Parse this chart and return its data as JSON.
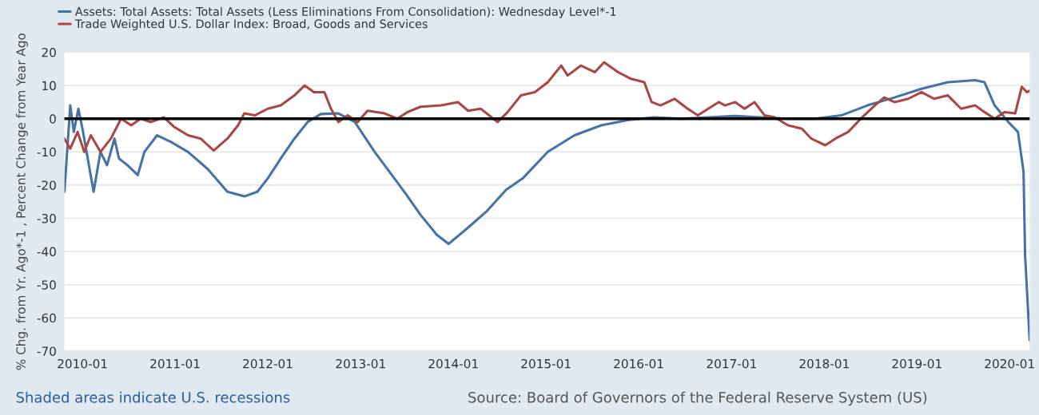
{
  "chart_data": {
    "type": "line",
    "ylabel": "% Chg. from Yr. Ago*-1 , Percent Change from Year Ago",
    "annotations": [
      "Shaded areas indicate U.S. recessions",
      "Source: Board of Governors of the Federal Reserve System (US)"
    ],
    "xlim": [
      "2009-10-22",
      "2020-03-20"
    ],
    "ylim": [
      -70,
      20
    ],
    "xticks": [
      "2010-01",
      "2011-01",
      "2012-01",
      "2013-01",
      "2014-01",
      "2015-01",
      "2016-01",
      "2017-01",
      "2018-01",
      "2019-01",
      "2020-01"
    ],
    "yticks": [
      -70,
      -60,
      -50,
      -40,
      -30,
      -20,
      -10,
      0,
      10,
      20
    ],
    "grid": "y",
    "legend": "top left",
    "marker": "none",
    "line_style": "solid",
    "ref_lines": [
      {
        "axis": "y",
        "value": 0,
        "color": "#000000"
      }
    ],
    "series": [
      {
        "name": "Assets: Total Assets: Total Assets (Less Eliminations From Consolidation): Wednesday Level*-1",
        "color": "#4572a7",
        "x": [
          "2009-10-22",
          "2009-11-14",
          "2009-11-28",
          "2009-12-16",
          "2010-01-01",
          "2010-02-14",
          "2010-03-13",
          "2010-04-08",
          "2010-05-07",
          "2010-05-25",
          "2010-06-27",
          "2010-08-07",
          "2010-09-02",
          "2010-10-22",
          "2010-12-16",
          "2011-02-21",
          "2011-05-07",
          "2011-07-26",
          "2011-10-01",
          "2011-11-21",
          "2012-01-01",
          "2012-02-21",
          "2012-04-15",
          "2012-06-06",
          "2012-07-28",
          "2012-10-05",
          "2012-12-09",
          "2013-02-25",
          "2013-05-14",
          "2013-07-01",
          "2013-08-25",
          "2013-10-28",
          "2013-12-13",
          "2014-02-25",
          "2014-05-11",
          "2014-07-28",
          "2014-10-01",
          "2015-01-08",
          "2015-04-23",
          "2015-08-07",
          "2015-11-18",
          "2016-03-02",
          "2016-06-16",
          "2016-10-01",
          "2017-01-15",
          "2017-04-26",
          "2017-08-11",
          "2017-11-25",
          "2018-03-09",
          "2018-06-20",
          "2018-10-05",
          "2019-01-19",
          "2019-05-03",
          "2019-08-18",
          "2019-09-24",
          "2019-11-03",
          "2019-12-27",
          "2020-02-03",
          "2020-02-25",
          "2020-03-02",
          "2020-03-20"
        ],
        "values": [
          -22,
          4,
          -4,
          3,
          -3,
          -22,
          -10,
          -14,
          -6,
          -12,
          -14,
          -17,
          -10,
          -5,
          -7,
          -10,
          -15,
          -22,
          -23.4,
          -22,
          -18,
          -12,
          -6,
          -1,
          1.4,
          1.6,
          -1,
          -10,
          -18,
          -23,
          -29,
          -35,
          -37.7,
          -33,
          -28,
          -21.4,
          -18,
          -10,
          -5,
          -2,
          -0.4,
          0.4,
          0,
          0.4,
          0.8,
          0.4,
          0,
          0,
          1,
          4,
          6.4,
          9,
          11,
          11.6,
          11,
          4,
          -1,
          -4,
          -16,
          -41,
          -66.7
        ]
      },
      {
        "name": "Trade Weighted U.S. Dollar Index: Broad, Goods and Services",
        "color": "#aa4643",
        "x": [
          "2009-10-22",
          "2009-11-14",
          "2009-12-13",
          "2010-01-08",
          "2010-02-03",
          "2010-03-13",
          "2010-04-23",
          "2010-06-02",
          "2010-07-12",
          "2010-08-18",
          "2010-09-27",
          "2010-11-18",
          "2010-12-27",
          "2011-02-21",
          "2011-04-12",
          "2011-06-02",
          "2011-07-26",
          "2011-09-06",
          "2011-10-01",
          "2011-11-11",
          "2012-01-01",
          "2012-02-21",
          "2012-04-15",
          "2012-05-25",
          "2012-07-01",
          "2012-08-11",
          "2012-09-06",
          "2012-10-05",
          "2012-11-11",
          "2012-12-20",
          "2013-01-28",
          "2013-04-05",
          "2013-05-25",
          "2013-07-05",
          "2013-08-25",
          "2013-11-14",
          "2014-01-19",
          "2014-02-28",
          "2014-04-19",
          "2014-06-24",
          "2014-08-03",
          "2014-09-24",
          "2014-11-18",
          "2015-01-08",
          "2015-03-02",
          "2015-03-27",
          "2015-05-18",
          "2015-07-12",
          "2015-08-18",
          "2015-10-12",
          "2015-12-02",
          "2016-01-23",
          "2016-02-21",
          "2016-03-27",
          "2016-05-21",
          "2016-07-12",
          "2016-08-21",
          "2016-10-01",
          "2016-11-11",
          "2016-12-06",
          "2017-01-15",
          "2017-02-21",
          "2017-04-01",
          "2017-05-11",
          "2017-06-20",
          "2017-08-11",
          "2017-10-05",
          "2017-11-11",
          "2018-01-05",
          "2018-02-14",
          "2018-04-05",
          "2018-05-25",
          "2018-07-19",
          "2018-08-25",
          "2018-10-05",
          "2018-11-28",
          "2019-01-19",
          "2019-03-09",
          "2019-05-03",
          "2019-06-24",
          "2019-08-18",
          "2019-09-24",
          "2019-11-03",
          "2019-12-13",
          "2020-01-23",
          "2020-02-18",
          "2020-03-09",
          "2020-03-20"
        ],
        "values": [
          -6,
          -9,
          -4,
          -10,
          -5,
          -10,
          -6,
          0,
          -2,
          0,
          -1,
          0.4,
          -2.4,
          -5,
          -6,
          -9.6,
          -6,
          -2,
          1.6,
          1,
          3,
          4,
          7,
          10,
          8,
          8,
          3,
          -1,
          1,
          -1,
          2.4,
          1.6,
          0,
          2,
          3.6,
          4,
          5,
          2.4,
          3,
          -1,
          2,
          7,
          8,
          11,
          16,
          13,
          16,
          14,
          17,
          14,
          12,
          11,
          5,
          4,
          6,
          3,
          1,
          3,
          5,
          4,
          5,
          3,
          5,
          1,
          0.4,
          -2,
          -3,
          -6,
          -8,
          -6,
          -4,
          0,
          4,
          6.4,
          5,
          6,
          8,
          6,
          7,
          3,
          4,
          2,
          0,
          2,
          1.6,
          9.6,
          8,
          8.4
        ]
      }
    ]
  }
}
